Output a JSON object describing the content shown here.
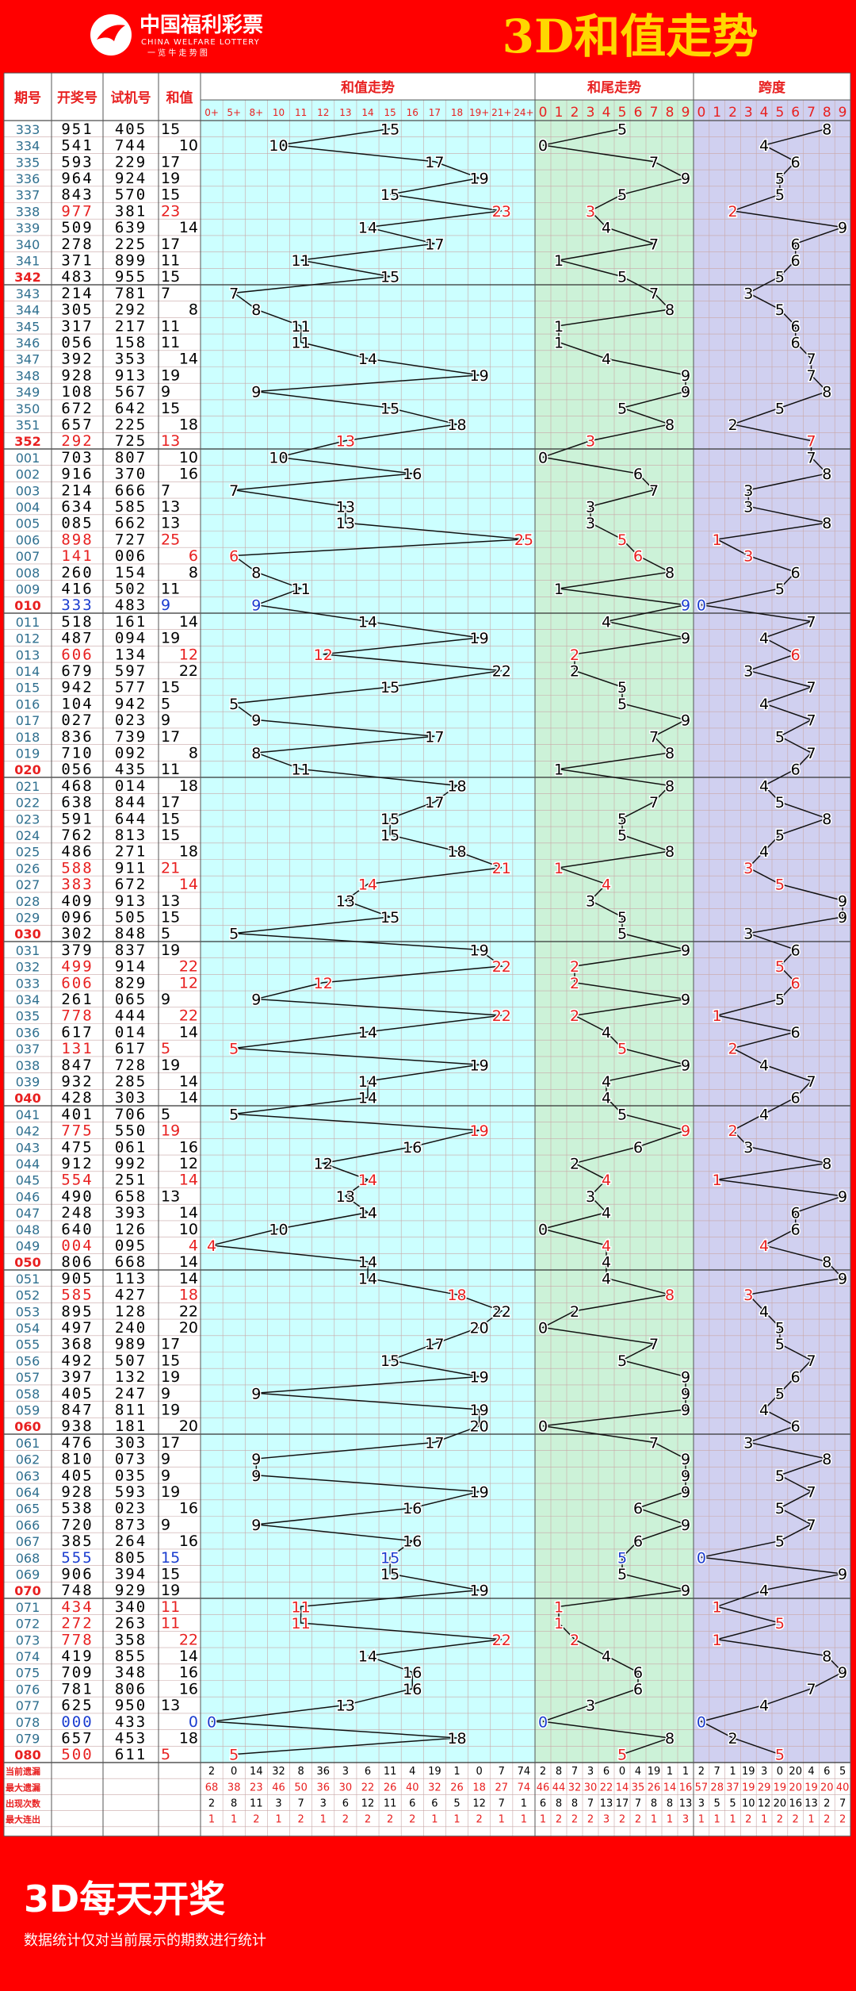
{
  "header": {
    "logo_cn": "中国福利彩票",
    "logo_en": "CHINA WELFARE LOTTERY",
    "logo_slogan": "一 览 牛 走 势 图",
    "title": "3D和值走势"
  },
  "columns": {
    "issue": "期号",
    "draw": "开奖号",
    "test": "试机号",
    "sum": "和值",
    "sum_trend": "和值走势",
    "tail_trend": "和尾走势",
    "span": "跨度"
  },
  "sum_bins": [
    "0+",
    "5+",
    "8+",
    "10",
    "11",
    "12",
    "13",
    "14",
    "15",
    "16",
    "17",
    "18",
    "19+",
    "21+",
    "24+"
  ],
  "digits": [
    "0",
    "1",
    "2",
    "3",
    "4",
    "5",
    "6",
    "7",
    "8",
    "9"
  ],
  "stats_labels": [
    "当前遗漏",
    "最大遗漏",
    "出现次数",
    "最大连出"
  ],
  "stats": {
    "sum": [
      [
        2,
        0,
        14,
        32,
        8,
        36,
        3,
        6,
        11,
        4,
        19,
        1,
        0,
        7,
        74
      ],
      [
        68,
        38,
        23,
        46,
        50,
        36,
        30,
        22,
        26,
        40,
        32,
        26,
        18,
        27,
        74
      ],
      [
        2,
        8,
        11,
        3,
        7,
        3,
        6,
        12,
        11,
        6,
        6,
        5,
        12,
        7,
        1
      ],
      [
        1,
        1,
        2,
        1,
        2,
        1,
        2,
        2,
        2,
        2,
        1,
        1,
        2,
        1,
        1
      ]
    ],
    "tail": [
      [
        2,
        8,
        7,
        3,
        6,
        0,
        4,
        19,
        1,
        1
      ],
      [
        46,
        44,
        32,
        30,
        22,
        14,
        35,
        26,
        14,
        16
      ],
      [
        6,
        8,
        8,
        7,
        13,
        17,
        7,
        8,
        8,
        13
      ],
      [
        1,
        2,
        2,
        2,
        3,
        2,
        2,
        1,
        1,
        3
      ]
    ],
    "span": [
      [
        2,
        7,
        1,
        19,
        3,
        0,
        20,
        4,
        6,
        5
      ],
      [
        57,
        28,
        37,
        19,
        29,
        19,
        20,
        19,
        20,
        40
      ],
      [
        3,
        5,
        5,
        10,
        12,
        20,
        16,
        13,
        2,
        7
      ],
      [
        1,
        1,
        1,
        2,
        1,
        2,
        2,
        1,
        2,
        2
      ]
    ]
  },
  "footer": {
    "title": "3D每天开奖",
    "note": "数据统计仅对当前展示的期数进行统计"
  },
  "colors": {
    "bg": "#ff0000",
    "sum_bg": "#ccffff",
    "tail_bg": "#ccf2d8",
    "span_bg": "#d0d0f0",
    "red": "#e82020",
    "blue": "#1a3ccf",
    "issue_blue": "#2f6f8f"
  },
  "chart_data": {
    "type": "table",
    "title": "3D和值走势",
    "rows": [
      {
        "issue": "333",
        "draw": "951",
        "test": "405",
        "sum": 15,
        "tail": 5,
        "span": 8
      },
      {
        "issue": "334",
        "draw": "541",
        "test": "744",
        "sum": 10,
        "tail": 0,
        "span": 4
      },
      {
        "issue": "335",
        "draw": "593",
        "test": "229",
        "sum": 17,
        "tail": 7,
        "span": 6
      },
      {
        "issue": "336",
        "draw": "964",
        "test": "924",
        "sum": 19,
        "tail": 9,
        "span": 5
      },
      {
        "issue": "337",
        "draw": "843",
        "test": "570",
        "sum": 15,
        "tail": 5,
        "span": 5
      },
      {
        "issue": "338",
        "draw": "977",
        "test": "381",
        "sum": 23,
        "tail": 3,
        "span": 2
      },
      {
        "issue": "339",
        "draw": "509",
        "test": "639",
        "sum": 14,
        "tail": 4,
        "span": 9
      },
      {
        "issue": "340",
        "draw": "278",
        "test": "225",
        "sum": 17,
        "tail": 7,
        "span": 6
      },
      {
        "issue": "341",
        "draw": "371",
        "test": "899",
        "sum": 11,
        "tail": 1,
        "span": 6
      },
      {
        "issue": "342",
        "draw": "483",
        "test": "955",
        "sum": 15,
        "tail": 5,
        "span": 5
      },
      {
        "issue": "343",
        "draw": "214",
        "test": "781",
        "sum": 7,
        "tail": 7,
        "span": 3
      },
      {
        "issue": "344",
        "draw": "305",
        "test": "292",
        "sum": 8,
        "tail": 8,
        "span": 5
      },
      {
        "issue": "345",
        "draw": "317",
        "test": "217",
        "sum": 11,
        "tail": 1,
        "span": 6
      },
      {
        "issue": "346",
        "draw": "056",
        "test": "158",
        "sum": 11,
        "tail": 1,
        "span": 6
      },
      {
        "issue": "347",
        "draw": "392",
        "test": "353",
        "sum": 14,
        "tail": 4,
        "span": 7
      },
      {
        "issue": "348",
        "draw": "928",
        "test": "913",
        "sum": 19,
        "tail": 9,
        "span": 7
      },
      {
        "issue": "349",
        "draw": "108",
        "test": "567",
        "sum": 9,
        "tail": 9,
        "span": 8
      },
      {
        "issue": "350",
        "draw": "672",
        "test": "642",
        "sum": 15,
        "tail": 5,
        "span": 5
      },
      {
        "issue": "351",
        "draw": "657",
        "test": "225",
        "sum": 18,
        "tail": 8,
        "span": 2
      },
      {
        "issue": "352",
        "draw": "292",
        "test": "725",
        "sum": 13,
        "tail": 3,
        "span": 7
      },
      {
        "issue": "001",
        "draw": "703",
        "test": "807",
        "sum": 10,
        "tail": 0,
        "span": 7
      },
      {
        "issue": "002",
        "draw": "916",
        "test": "370",
        "sum": 16,
        "tail": 6,
        "span": 8
      },
      {
        "issue": "003",
        "draw": "214",
        "test": "666",
        "sum": 7,
        "tail": 7,
        "span": 3
      },
      {
        "issue": "004",
        "draw": "634",
        "test": "585",
        "sum": 13,
        "tail": 3,
        "span": 3
      },
      {
        "issue": "005",
        "draw": "085",
        "test": "662",
        "sum": 13,
        "tail": 3,
        "span": 8
      },
      {
        "issue": "006",
        "draw": "898",
        "test": "727",
        "sum": 25,
        "tail": 5,
        "span": 1
      },
      {
        "issue": "007",
        "draw": "141",
        "test": "006",
        "sum": 6,
        "tail": 6,
        "span": 3
      },
      {
        "issue": "008",
        "draw": "260",
        "test": "154",
        "sum": 8,
        "tail": 8,
        "span": 6
      },
      {
        "issue": "009",
        "draw": "416",
        "test": "502",
        "sum": 11,
        "tail": 1,
        "span": 5
      },
      {
        "issue": "010",
        "draw": "333",
        "test": "483",
        "sum": 9,
        "tail": 9,
        "span": 0
      },
      {
        "issue": "011",
        "draw": "518",
        "test": "161",
        "sum": 14,
        "tail": 4,
        "span": 7
      },
      {
        "issue": "012",
        "draw": "487",
        "test": "094",
        "sum": 19,
        "tail": 9,
        "span": 4
      },
      {
        "issue": "013",
        "draw": "606",
        "test": "134",
        "sum": 12,
        "tail": 2,
        "span": 6
      },
      {
        "issue": "014",
        "draw": "679",
        "test": "597",
        "sum": 22,
        "tail": 2,
        "span": 3
      },
      {
        "issue": "015",
        "draw": "942",
        "test": "577",
        "sum": 15,
        "tail": 5,
        "span": 7
      },
      {
        "issue": "016",
        "draw": "104",
        "test": "942",
        "sum": 5,
        "tail": 5,
        "span": 4
      },
      {
        "issue": "017",
        "draw": "027",
        "test": "023",
        "sum": 9,
        "tail": 9,
        "span": 7
      },
      {
        "issue": "018",
        "draw": "836",
        "test": "739",
        "sum": 17,
        "tail": 7,
        "span": 5
      },
      {
        "issue": "019",
        "draw": "710",
        "test": "092",
        "sum": 8,
        "tail": 8,
        "span": 7
      },
      {
        "issue": "020",
        "draw": "056",
        "test": "435",
        "sum": 11,
        "tail": 1,
        "span": 6
      },
      {
        "issue": "021",
        "draw": "468",
        "test": "014",
        "sum": 18,
        "tail": 8,
        "span": 4
      },
      {
        "issue": "022",
        "draw": "638",
        "test": "844",
        "sum": 17,
        "tail": 7,
        "span": 5
      },
      {
        "issue": "023",
        "draw": "591",
        "test": "644",
        "sum": 15,
        "tail": 5,
        "span": 8
      },
      {
        "issue": "024",
        "draw": "762",
        "test": "813",
        "sum": 15,
        "tail": 5,
        "span": 5
      },
      {
        "issue": "025",
        "draw": "486",
        "test": "271",
        "sum": 18,
        "tail": 8,
        "span": 4
      },
      {
        "issue": "026",
        "draw": "588",
        "test": "911",
        "sum": 21,
        "tail": 1,
        "span": 3
      },
      {
        "issue": "027",
        "draw": "383",
        "test": "672",
        "sum": 14,
        "tail": 4,
        "span": 5
      },
      {
        "issue": "028",
        "draw": "409",
        "test": "913",
        "sum": 13,
        "tail": 3,
        "span": 9
      },
      {
        "issue": "029",
        "draw": "096",
        "test": "505",
        "sum": 15,
        "tail": 5,
        "span": 9
      },
      {
        "issue": "030",
        "draw": "302",
        "test": "848",
        "sum": 5,
        "tail": 5,
        "span": 3
      },
      {
        "issue": "031",
        "draw": "379",
        "test": "837",
        "sum": 19,
        "tail": 9,
        "span": 6
      },
      {
        "issue": "032",
        "draw": "499",
        "test": "914",
        "sum": 22,
        "tail": 2,
        "span": 5
      },
      {
        "issue": "033",
        "draw": "606",
        "test": "829",
        "sum": 12,
        "tail": 2,
        "span": 6
      },
      {
        "issue": "034",
        "draw": "261",
        "test": "065",
        "sum": 9,
        "tail": 9,
        "span": 5
      },
      {
        "issue": "035",
        "draw": "778",
        "test": "444",
        "sum": 22,
        "tail": 2,
        "span": 1
      },
      {
        "issue": "036",
        "draw": "617",
        "test": "014",
        "sum": 14,
        "tail": 4,
        "span": 6
      },
      {
        "issue": "037",
        "draw": "131",
        "test": "617",
        "sum": 5,
        "tail": 5,
        "span": 2
      },
      {
        "issue": "038",
        "draw": "847",
        "test": "728",
        "sum": 19,
        "tail": 9,
        "span": 4
      },
      {
        "issue": "039",
        "draw": "932",
        "test": "285",
        "sum": 14,
        "tail": 4,
        "span": 7
      },
      {
        "issue": "040",
        "draw": "428",
        "test": "303",
        "sum": 14,
        "tail": 4,
        "span": 6
      },
      {
        "issue": "041",
        "draw": "401",
        "test": "706",
        "sum": 5,
        "tail": 5,
        "span": 4
      },
      {
        "issue": "042",
        "draw": "775",
        "test": "550",
        "sum": 19,
        "tail": 9,
        "span": 2
      },
      {
        "issue": "043",
        "draw": "475",
        "test": "061",
        "sum": 16,
        "tail": 6,
        "span": 3
      },
      {
        "issue": "044",
        "draw": "912",
        "test": "992",
        "sum": 12,
        "tail": 2,
        "span": 8
      },
      {
        "issue": "045",
        "draw": "554",
        "test": "251",
        "sum": 14,
        "tail": 4,
        "span": 1
      },
      {
        "issue": "046",
        "draw": "490",
        "test": "658",
        "sum": 13,
        "tail": 3,
        "span": 9
      },
      {
        "issue": "047",
        "draw": "248",
        "test": "393",
        "sum": 14,
        "tail": 4,
        "span": 6
      },
      {
        "issue": "048",
        "draw": "640",
        "test": "126",
        "sum": 10,
        "tail": 0,
        "span": 6
      },
      {
        "issue": "049",
        "draw": "004",
        "test": "095",
        "sum": 4,
        "tail": 4,
        "span": 4
      },
      {
        "issue": "050",
        "draw": "806",
        "test": "668",
        "sum": 14,
        "tail": 4,
        "span": 8
      },
      {
        "issue": "051",
        "draw": "905",
        "test": "113",
        "sum": 14,
        "tail": 4,
        "span": 9
      },
      {
        "issue": "052",
        "draw": "585",
        "test": "427",
        "sum": 18,
        "tail": 8,
        "span": 3
      },
      {
        "issue": "053",
        "draw": "895",
        "test": "128",
        "sum": 22,
        "tail": 2,
        "span": 4
      },
      {
        "issue": "054",
        "draw": "497",
        "test": "240",
        "sum": 20,
        "tail": 0,
        "span": 5
      },
      {
        "issue": "055",
        "draw": "368",
        "test": "989",
        "sum": 17,
        "tail": 7,
        "span": 5
      },
      {
        "issue": "056",
        "draw": "492",
        "test": "507",
        "sum": 15,
        "tail": 5,
        "span": 7
      },
      {
        "issue": "057",
        "draw": "397",
        "test": "132",
        "sum": 19,
        "tail": 9,
        "span": 6
      },
      {
        "issue": "058",
        "draw": "405",
        "test": "247",
        "sum": 9,
        "tail": 9,
        "span": 5
      },
      {
        "issue": "059",
        "draw": "847",
        "test": "811",
        "sum": 19,
        "tail": 9,
        "span": 4
      },
      {
        "issue": "060",
        "draw": "938",
        "test": "181",
        "sum": 20,
        "tail": 0,
        "span": 6
      },
      {
        "issue": "061",
        "draw": "476",
        "test": "303",
        "sum": 17,
        "tail": 7,
        "span": 3
      },
      {
        "issue": "062",
        "draw": "810",
        "test": "073",
        "sum": 9,
        "tail": 9,
        "span": 8
      },
      {
        "issue": "063",
        "draw": "405",
        "test": "035",
        "sum": 9,
        "tail": 9,
        "span": 5
      },
      {
        "issue": "064",
        "draw": "928",
        "test": "593",
        "sum": 19,
        "tail": 9,
        "span": 7
      },
      {
        "issue": "065",
        "draw": "538",
        "test": "023",
        "sum": 16,
        "tail": 6,
        "span": 5
      },
      {
        "issue": "066",
        "draw": "720",
        "test": "873",
        "sum": 9,
        "tail": 9,
        "span": 7
      },
      {
        "issue": "067",
        "draw": "385",
        "test": "264",
        "sum": 16,
        "tail": 6,
        "span": 5
      },
      {
        "issue": "068",
        "draw": "555",
        "test": "805",
        "sum": 15,
        "tail": 5,
        "span": 0
      },
      {
        "issue": "069",
        "draw": "906",
        "test": "394",
        "sum": 15,
        "tail": 5,
        "span": 9
      },
      {
        "issue": "070",
        "draw": "748",
        "test": "929",
        "sum": 19,
        "tail": 9,
        "span": 4
      },
      {
        "issue": "071",
        "draw": "434",
        "test": "340",
        "sum": 11,
        "tail": 1,
        "span": 1
      },
      {
        "issue": "072",
        "draw": "272",
        "test": "263",
        "sum": 11,
        "tail": 1,
        "span": 5
      },
      {
        "issue": "073",
        "draw": "778",
        "test": "358",
        "sum": 22,
        "tail": 2,
        "span": 1
      },
      {
        "issue": "074",
        "draw": "419",
        "test": "855",
        "sum": 14,
        "tail": 4,
        "span": 8
      },
      {
        "issue": "075",
        "draw": "709",
        "test": "348",
        "sum": 16,
        "tail": 6,
        "span": 9
      },
      {
        "issue": "076",
        "draw": "781",
        "test": "806",
        "sum": 16,
        "tail": 6,
        "span": 7
      },
      {
        "issue": "077",
        "draw": "625",
        "test": "950",
        "sum": 13,
        "tail": 3,
        "span": 4
      },
      {
        "issue": "078",
        "draw": "000",
        "test": "433",
        "sum": 0,
        "tail": 0,
        "span": 0
      },
      {
        "issue": "079",
        "draw": "657",
        "test": "453",
        "sum": 18,
        "tail": 8,
        "span": 2
      },
      {
        "issue": "080",
        "draw": "500",
        "test": "611",
        "sum": 5,
        "tail": 5,
        "span": 5
      }
    ]
  }
}
